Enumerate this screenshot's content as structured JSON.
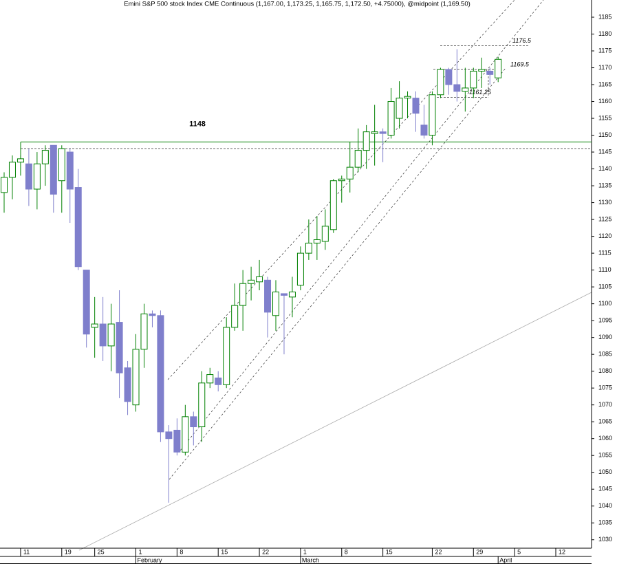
{
  "chart_data": {
    "type": "candlestick",
    "title": "Emini S&P 500 stock Index CME Continuous (1,167.00, 1,173.25, 1,165.75, 1,172.50, +4.75000), @midpoint (1,169.50)",
    "categories": [
      null,
      null,
      "11",
      null,
      null,
      null,
      null,
      "19",
      null,
      null,
      null,
      "25",
      null,
      null,
      null,
      null,
      "1",
      null,
      null,
      null,
      null,
      "8",
      null,
      null,
      null,
      null,
      "15",
      null,
      null,
      null,
      null,
      "22",
      null,
      null,
      null,
      null,
      "1",
      null,
      null,
      null,
      null,
      "8",
      null,
      null,
      null,
      null,
      "15",
      null,
      null,
      null,
      null,
      null,
      "22",
      null,
      null,
      null,
      null,
      "29",
      null,
      null,
      null,
      null,
      "5",
      null,
      null,
      null,
      null,
      "12"
    ],
    "months": [
      null,
      null,
      null,
      null,
      null,
      null,
      null,
      null,
      null,
      null,
      null,
      null,
      null,
      null,
      null,
      null,
      "February",
      null,
      null,
      null,
      null,
      null,
      null,
      null,
      null,
      null,
      null,
      null,
      null,
      null,
      null,
      null,
      null,
      null,
      null,
      null,
      "March",
      null,
      null,
      null,
      null,
      null,
      null,
      null,
      null,
      null,
      null,
      null,
      null,
      null,
      null,
      null,
      null,
      null,
      null,
      null,
      null,
      null,
      null,
      null,
      "April",
      null,
      null,
      null,
      null,
      null,
      null,
      null
    ],
    "open": [
      1133,
      1137.5,
      1142,
      1141.5,
      1134,
      1141.5,
      1147,
      1136.5,
      1145,
      1134.5,
      1110,
      1093,
      1094,
      1087.5,
      1094.5,
      1081,
      1070,
      1086.5,
      1097,
      1096.5,
      1062,
      1062.5,
      1056,
      1066.5,
      1063.5,
      1076.5,
      1078,
      1076,
      1093,
      1099.5,
      1106,
      1106.5,
      1107,
      1096.5,
      1103,
      1102,
      1105.5,
      1115,
      1118,
      1118.5,
      1122,
      1136.5,
      1137,
      1140.5,
      1145.5,
      1150.5,
      1151,
      1150,
      1155,
      1161,
      1161,
      1153,
      1150,
      1162,
      1169.5,
      1165,
      1163,
      1164,
      1169,
      1169,
      1167,
      null,
      null,
      null,
      null,
      null,
      null,
      null
    ],
    "high": [
      1139,
      1144,
      1144,
      1146,
      1145,
      1147,
      1147,
      1147,
      1146,
      1140,
      1110,
      1102,
      1102,
      1100,
      1104,
      1083,
      1091,
      1100,
      1098,
      1098,
      1064,
      1066,
      1070,
      1068,
      1080,
      1081,
      1080,
      1096,
      1106,
      1110,
      1111,
      1113,
      1108,
      1107,
      1103,
      1108,
      1117,
      1125,
      1126,
      1128,
      1137,
      1138,
      1148,
      1152,
      1153,
      1159,
      1152,
      1164,
      1166,
      1163,
      1163,
      1159,
      1163,
      1170,
      1170,
      1175.5,
      1170,
      1170,
      1173,
      1170,
      1173.25,
      null,
      null,
      null,
      null,
      null,
      null,
      null
    ],
    "low": [
      1127,
      1131,
      1138,
      1129,
      1128,
      1135,
      1127,
      1127,
      1124,
      1110,
      1087,
      1084,
      1083,
      1080,
      1072,
      1067,
      1068,
      1081,
      1093,
      1059,
      1041,
      1055,
      1055,
      1058,
      1059,
      1075,
      1074,
      1075,
      1092,
      1092,
      1101,
      1104,
      1090,
      1092,
      1085,
      1096,
      1104,
      1113,
      1113,
      1116,
      1121,
      1130,
      1133,
      1139,
      1140,
      1141,
      1142,
      1149,
      1152,
      1155,
      1151,
      1149,
      1147,
      1161,
      1162,
      1160,
      1157,
      1161,
      1164,
      1165,
      1165.75,
      null,
      null,
      null,
      null,
      null,
      null,
      null
    ],
    "close": [
      1137.5,
      1142,
      1143,
      1134,
      1141.5,
      1145.5,
      1132.5,
      1146,
      1134,
      1111,
      1091,
      1094,
      1087.5,
      1094,
      1079.5,
      1071,
      1086.5,
      1097,
      1096.5,
      1062,
      1060,
      1056,
      1066.5,
      1063.5,
      1076.5,
      1079,
      1076,
      1093,
      1099.5,
      1106,
      1107,
      1108,
      1097.5,
      1103.5,
      1102.5,
      1103.5,
      1115,
      1118,
      1119,
      1123,
      1136.5,
      1137,
      1140.5,
      1145.5,
      1151,
      1151,
      1150.5,
      1160,
      1161,
      1161.5,
      1156.5,
      1150,
      1162,
      1169.5,
      1165,
      1163,
      1164,
      1169,
      1169.5,
      1168,
      1172.5,
      null,
      null,
      null,
      null,
      null,
      null,
      null
    ],
    "up_color": "#008000",
    "down_color": "#7f7fcc",
    "ylim": [
      1027.5,
      1190.1
    ],
    "yticks": [
      1030,
      1035,
      1040,
      1045,
      1050,
      1055,
      1060,
      1065,
      1070,
      1075,
      1080,
      1085,
      1090,
      1095,
      1100,
      1105,
      1110,
      1115,
      1120,
      1125,
      1130,
      1135,
      1140,
      1145,
      1150,
      1155,
      1160,
      1165,
      1170,
      1175,
      1180,
      1185
    ],
    "resistance": 1148,
    "levels": [
      1176.5,
      1169.5,
      1161.25
    ]
  }
}
